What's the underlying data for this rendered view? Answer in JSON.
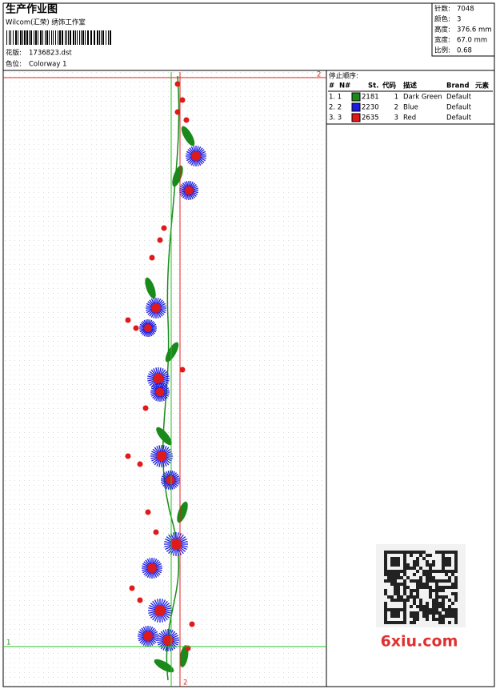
{
  "header": {
    "title": "生产作业图",
    "studio": "Wilcom(汇荣) 绣饰工作室",
    "design_label": "花版:",
    "design": "1736823.dst",
    "colorway_label": "色位:",
    "colorway": "Colorway 1"
  },
  "info": [
    {
      "label": "针数:",
      "value": "7048"
    },
    {
      "label": "颜色:",
      "value": "3"
    },
    {
      "label": "高度:",
      "value": "376.6 mm"
    },
    {
      "label": "宽度:",
      "value": "67.0 mm"
    },
    {
      "label": "比例:",
      "value": "0.68"
    }
  ],
  "stop_table": {
    "title": "停止顺序:",
    "columns": [
      "#",
      "N#",
      "St.",
      "代码",
      "描述",
      "Brand",
      "元素"
    ],
    "rows": [
      {
        "num": "1. 1",
        "color": "#1a8a1a",
        "st": "2181",
        "code": "1",
        "desc": "Dark Green",
        "brand": "Default"
      },
      {
        "num": "2. 2",
        "color": "#1a1ae0",
        "st": "2230",
        "code": "2",
        "desc": "Blue",
        "brand": "Default"
      },
      {
        "num": "3. 3",
        "color": "#e01a1a",
        "st": "2635",
        "code": "3",
        "desc": "Red",
        "brand": "Default"
      }
    ]
  },
  "markers": {
    "red_top": "2",
    "red_bottom": "2",
    "green_left": "1"
  },
  "watermark": "6xiu.com"
}
